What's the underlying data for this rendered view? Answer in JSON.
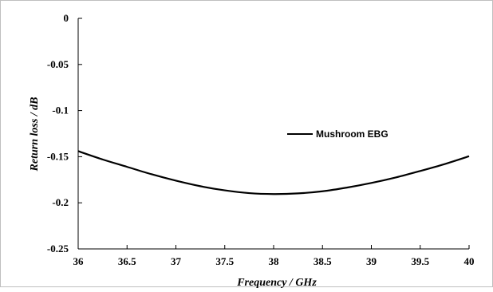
{
  "chart_data": {
    "type": "line",
    "title": "",
    "xlabel": "Frequency / GHz",
    "ylabel": "Return loss / dB",
    "xlim": [
      36,
      40
    ],
    "ylim": [
      -0.25,
      0
    ],
    "x_ticks": [
      36,
      36.5,
      37,
      37.5,
      38,
      38.5,
      39,
      39.5,
      40
    ],
    "x_tick_labels": [
      "36",
      "36.5",
      "37",
      "37.5",
      "38",
      "38.5",
      "39",
      "39.5",
      "40"
    ],
    "y_ticks": [
      0,
      -0.05,
      -0.1,
      -0.15,
      -0.2,
      -0.25
    ],
    "y_tick_labels": [
      "0",
      "-0.05",
      "-0.1",
      "-0.15",
      "-0.2",
      "-0.25"
    ],
    "grid": false,
    "legend_position": "center-right",
    "series": [
      {
        "name": "Mushroom EBG",
        "color": "#000000",
        "x": [
          36,
          36.25,
          36.5,
          36.75,
          37,
          37.25,
          37.5,
          37.75,
          38,
          38.25,
          38.5,
          38.75,
          39,
          39.25,
          39.5,
          39.75,
          40
        ],
        "y": [
          -0.144,
          -0.153,
          -0.161,
          -0.169,
          -0.176,
          -0.182,
          -0.1865,
          -0.1895,
          -0.1905,
          -0.1898,
          -0.1875,
          -0.1835,
          -0.1785,
          -0.1725,
          -0.1655,
          -0.158,
          -0.1495
        ]
      }
    ]
  }
}
